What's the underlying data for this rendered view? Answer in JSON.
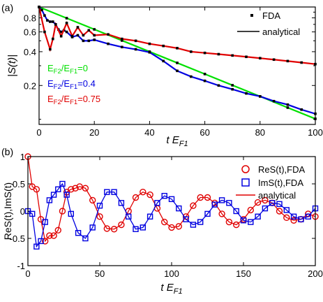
{
  "chart_data": [
    {
      "panel_label": "(a)",
      "type": "line",
      "ylog": true,
      "xlabel_main": "t E",
      "xlabel_sub": "F1",
      "ylabel": "|S(t)|",
      "xlim": [
        0,
        100
      ],
      "ylim": [
        0.09,
        1.0
      ],
      "xticks": [
        "0",
        "20",
        "40",
        "60",
        "80",
        "100"
      ],
      "yticks": [
        "0.2",
        "0.4",
        "0.6",
        "0.8"
      ],
      "legend": [
        "FDA",
        "analytical"
      ],
      "series": [
        {
          "label": {
            "p1": "E",
            "s1": "F2",
            "p2": "/E",
            "s2": "F1",
            "p3": "=0"
          },
          "color": "#00e000",
          "x": [
            0,
            10,
            20,
            30,
            40,
            50,
            60,
            70,
            80,
            90,
            100
          ],
          "y": [
            1.0,
            0.795,
            0.632,
            0.503,
            0.4,
            0.318,
            0.253,
            0.201,
            0.16,
            0.127,
            0.101
          ]
        },
        {
          "label": {
            "p1": "E",
            "s1": "F2",
            "p2": "/E",
            "s2": "F1",
            "p3": "=0.4"
          },
          "color": "#0000e0",
          "x": [
            0,
            1,
            2,
            3,
            4,
            5,
            6,
            7,
            8,
            9,
            10,
            12,
            14,
            16,
            18,
            20,
            25,
            30,
            35,
            40,
            45,
            50,
            55,
            60,
            65,
            70,
            75,
            80,
            85,
            90,
            95,
            100
          ],
          "y": [
            1.0,
            0.94,
            0.84,
            0.76,
            0.74,
            0.74,
            0.7,
            0.63,
            0.6,
            0.62,
            0.6,
            0.54,
            0.56,
            0.5,
            0.5,
            0.51,
            0.47,
            0.44,
            0.42,
            0.395,
            0.33,
            0.27,
            0.24,
            0.22,
            0.2,
            0.185,
            0.17,
            0.16,
            0.145,
            0.135,
            0.122,
            0.112
          ]
        },
        {
          "label": {
            "p1": "E",
            "s1": "F2",
            "p2": "/E",
            "s2": "F1",
            "p3": "=0.75"
          },
          "color": "#e00000",
          "x": [
            0,
            2,
            4,
            5,
            6,
            8,
            10,
            12,
            14,
            16,
            18,
            20,
            25,
            30,
            35,
            40,
            45,
            50,
            55,
            60,
            65,
            70,
            75,
            80,
            85,
            90,
            95,
            100
          ],
          "y": [
            1.0,
            0.6,
            0.42,
            0.52,
            0.7,
            0.55,
            0.72,
            0.55,
            0.66,
            0.56,
            0.62,
            0.56,
            0.57,
            0.52,
            0.5,
            0.47,
            0.45,
            0.43,
            0.4,
            0.39,
            0.38,
            0.37,
            0.36,
            0.35,
            0.34,
            0.33,
            0.32,
            0.31
          ]
        }
      ]
    },
    {
      "panel_label": "(b)",
      "type": "line",
      "xlabel_main": "t E",
      "xlabel_sub": "F1",
      "ylabel": "ReS(t),ImS(t)",
      "xlim": [
        0,
        200
      ],
      "ylim": [
        -1,
        1
      ],
      "xticks": [
        "0",
        "50",
        "100",
        "150",
        "200"
      ],
      "yticks": [
        "-1",
        "-0.5",
        "0",
        "0.5",
        "1"
      ],
      "legend": [
        "ReS(t),FDA",
        "ImS(t),FDA",
        "analytical"
      ],
      "series": [
        {
          "name": "ReS(t),FDA",
          "color": "#e00000",
          "x": [
            0,
            3,
            6,
            9,
            12,
            15,
            18,
            21,
            24,
            27,
            30,
            33,
            36,
            40,
            45,
            50,
            55,
            60,
            65,
            70,
            75,
            80,
            85,
            90,
            95,
            100,
            105,
            110,
            115,
            120,
            125,
            130,
            135,
            140,
            145,
            150,
            155,
            160,
            165,
            170,
            175,
            180,
            185,
            190,
            195,
            200
          ],
          "y": [
            1.0,
            0.45,
            0.4,
            -0.15,
            -0.55,
            -0.45,
            -0.45,
            -0.35,
            0.0,
            0.35,
            0.4,
            0.42,
            0.45,
            0.42,
            0.2,
            -0.1,
            -0.32,
            -0.33,
            -0.25,
            0.0,
            0.25,
            0.35,
            0.3,
            0.05,
            -0.2,
            -0.3,
            -0.28,
            -0.1,
            0.1,
            0.25,
            0.25,
            0.15,
            -0.05,
            -0.2,
            -0.25,
            -0.15,
            0.02,
            0.16,
            0.2,
            0.15,
            0.0,
            -0.12,
            -0.17,
            -0.15,
            -0.05,
            -0.1
          ]
        },
        {
          "name": "ImS(t),FDA",
          "color": "#0000e0",
          "x": [
            0,
            3,
            6,
            9,
            12,
            15,
            18,
            21,
            24,
            27,
            30,
            35,
            40,
            45,
            50,
            55,
            60,
            65,
            70,
            75,
            80,
            85,
            90,
            95,
            100,
            105,
            110,
            115,
            120,
            125,
            130,
            135,
            140,
            145,
            150,
            155,
            160,
            165,
            170,
            175,
            180,
            185,
            190,
            195,
            200
          ],
          "y": [
            0.0,
            -0.05,
            -0.65,
            -0.55,
            -0.2,
            0.2,
            0.3,
            0.4,
            0.5,
            0.3,
            -0.05,
            -0.4,
            -0.5,
            -0.3,
            0.1,
            0.35,
            0.35,
            0.15,
            -0.1,
            -0.33,
            -0.3,
            -0.1,
            0.15,
            0.28,
            0.22,
            0.05,
            -0.15,
            -0.25,
            -0.2,
            -0.05,
            0.12,
            0.2,
            0.15,
            0.0,
            -0.17,
            -0.2,
            -0.1,
            0.05,
            0.15,
            0.13,
            0.02,
            -0.1,
            -0.15,
            -0.1,
            0.05
          ]
        }
      ]
    }
  ]
}
